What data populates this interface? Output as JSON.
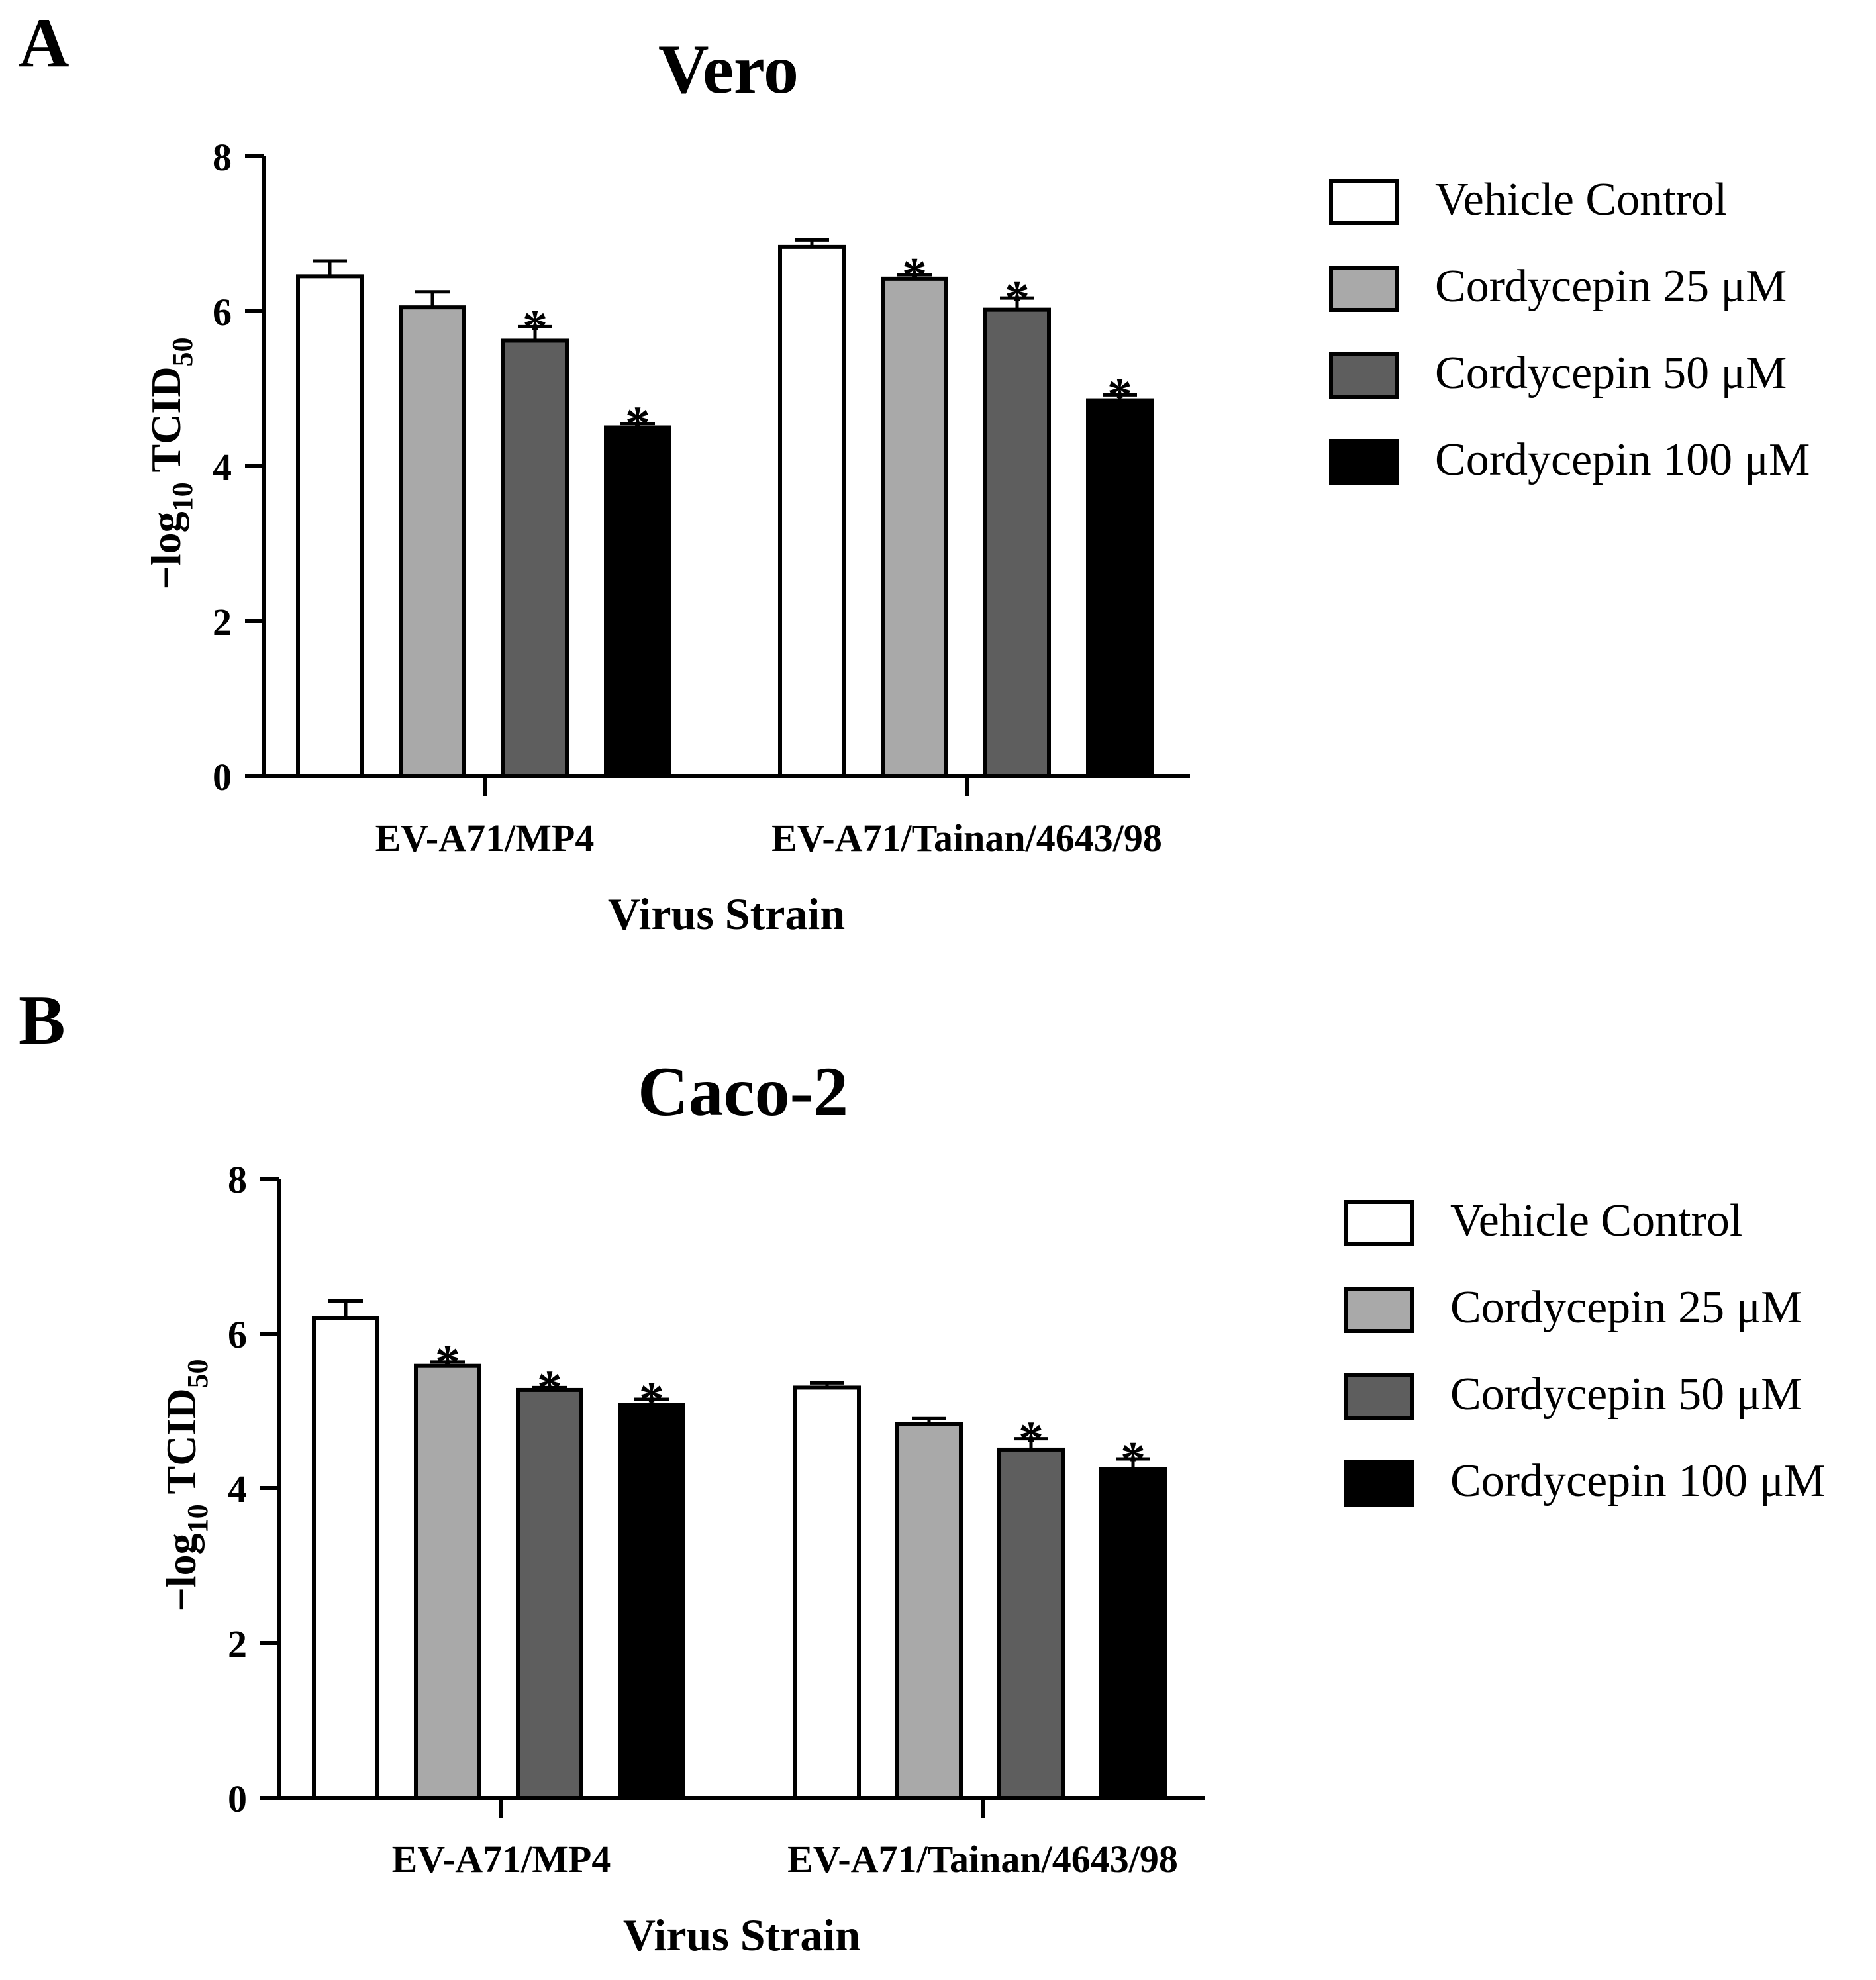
{
  "panels": [
    {
      "panel_label": "A",
      "title": "Vero",
      "ylabel_main": "−log",
      "ylabel_sub": "10",
      "ylabel_rest": " TCID",
      "ylabel_sub2": "50",
      "xlabel": "Virus Strain",
      "yticks": [
        "0",
        "2",
        "4",
        "6",
        "8"
      ],
      "categories": [
        "EV-A71/MP4",
        "EV-A71/Tainan/4643/98"
      ],
      "legend": [
        "Vehicle Control",
        "Cordycepin 25 μM",
        "Cordycepin 50 μM",
        "Cordycepin 100 μM"
      ],
      "sig_mark": "*"
    },
    {
      "panel_label": "B",
      "title": "Caco-2",
      "ylabel_main": "−log",
      "ylabel_sub": "10",
      "ylabel_rest": " TCID",
      "ylabel_sub2": "50",
      "xlabel": "Virus Strain",
      "yticks": [
        "0",
        "2",
        "4",
        "6",
        "8"
      ],
      "categories": [
        "EV-A71/MP4",
        "EV-A71/Tainan/4643/98"
      ],
      "legend": [
        "Vehicle Control",
        "Cordycepin 25 μM",
        "Cordycepin 50 μM",
        "Cordycepin 100 μM"
      ],
      "sig_mark": "*"
    }
  ],
  "colors": {
    "vehicle": "#ffffff",
    "c25": "#a9a9a9",
    "c50": "#5e5e5e",
    "c100": "#000000",
    "stroke": "#000000"
  },
  "chart_data": [
    {
      "type": "bar",
      "title": "Vero",
      "xlabel": "Virus Strain",
      "ylabel": "−log10 TCID50",
      "ylim": [
        0,
        8
      ],
      "yticks": [
        0,
        2,
        4,
        6,
        8
      ],
      "categories": [
        "EV-A71/MP4",
        "EV-A71/Tainan/4643/98"
      ],
      "series": [
        {
          "name": "Vehicle Control",
          "values": [
            6.45,
            6.83
          ],
          "errors": [
            0.2,
            0.09
          ],
          "significant": [
            false,
            false
          ]
        },
        {
          "name": "Cordycepin 25 μM",
          "values": [
            6.05,
            6.42
          ],
          "errors": [
            0.2,
            0.05
          ],
          "significant": [
            false,
            true
          ]
        },
        {
          "name": "Cordycepin 50 μM",
          "values": [
            5.62,
            6.02
          ],
          "errors": [
            0.18,
            0.15
          ],
          "significant": [
            true,
            true
          ]
        },
        {
          "name": "Cordycepin 100 μM",
          "values": [
            4.5,
            4.85
          ],
          "errors": [
            0.05,
            0.07
          ],
          "significant": [
            true,
            true
          ]
        }
      ],
      "legend_position": "right"
    },
    {
      "type": "bar",
      "title": "Caco-2",
      "xlabel": "Virus Strain",
      "ylabel": "−log10 TCID50",
      "ylim": [
        0,
        8
      ],
      "yticks": [
        0,
        2,
        4,
        6,
        8
      ],
      "categories": [
        "EV-A71/MP4",
        "EV-A71/Tainan/4643/98"
      ],
      "series": [
        {
          "name": "Vehicle Control",
          "values": [
            6.2,
            5.3
          ],
          "errors": [
            0.22,
            0.06
          ],
          "significant": [
            false,
            false
          ]
        },
        {
          "name": "Cordycepin 25 μM",
          "values": [
            5.58,
            4.83
          ],
          "errors": [
            0.05,
            0.07
          ],
          "significant": [
            true,
            false
          ]
        },
        {
          "name": "Cordycepin 50 μM",
          "values": [
            5.27,
            4.5
          ],
          "errors": [
            0.03,
            0.14
          ],
          "significant": [
            true,
            true
          ]
        },
        {
          "name": "Cordycepin 100 μM",
          "values": [
            5.08,
            4.25
          ],
          "errors": [
            0.07,
            0.13
          ],
          "significant": [
            true,
            true
          ]
        }
      ],
      "legend_position": "right"
    }
  ]
}
